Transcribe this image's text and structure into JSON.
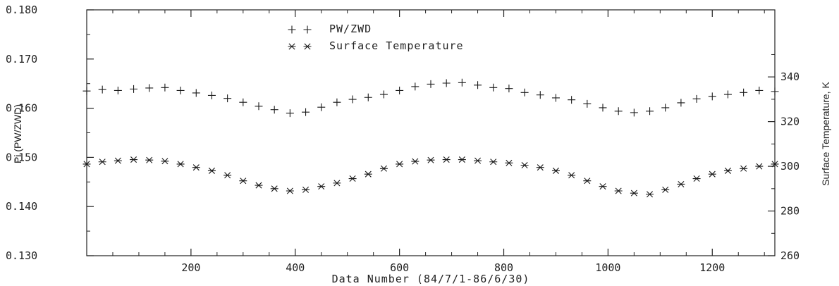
{
  "chart_data": {
    "type": "scatter",
    "title": "",
    "xlabel": "Data Number (84/7/1-86/6/30)",
    "ylabel_left": "Pi (PW/ZWD)",
    "ylabel_right": "Surface Temperature, K",
    "xlim": [
      0,
      1320
    ],
    "ylim_left": [
      0.13,
      0.18
    ],
    "ylim_right": [
      260,
      370
    ],
    "x_ticks": [
      "200",
      "400",
      "600",
      "800",
      "1000",
      "1200"
    ],
    "y_ticks_left": [
      "0.130",
      "0.140",
      "0.150",
      "0.160",
      "0.170",
      "0.180"
    ],
    "y_ticks_right": [
      "260",
      "280",
      "300",
      "320",
      "340"
    ],
    "legend_position": "top-center",
    "grid": false,
    "series": [
      {
        "name": "PW/ZWD",
        "axis": "left",
        "marker": "plus",
        "x": [
          0,
          30,
          60,
          90,
          120,
          150,
          180,
          210,
          240,
          270,
          300,
          330,
          360,
          390,
          420,
          450,
          480,
          510,
          540,
          570,
          600,
          630,
          660,
          690,
          720,
          750,
          780,
          810,
          840,
          870,
          900,
          930,
          960,
          990,
          1020,
          1050,
          1080,
          1110,
          1140,
          1170,
          1200,
          1230,
          1260,
          1290,
          1320
        ],
        "y": [
          0.1635,
          0.1638,
          0.1636,
          0.1639,
          0.1641,
          0.1642,
          0.1636,
          0.1631,
          0.1626,
          0.162,
          0.1612,
          0.1604,
          0.1597,
          0.159,
          0.1592,
          0.1602,
          0.1612,
          0.1618,
          0.1622,
          0.1628,
          0.1636,
          0.1644,
          0.1649,
          0.1651,
          0.1652,
          0.1647,
          0.1642,
          0.164,
          0.1632,
          0.1627,
          0.1621,
          0.1617,
          0.1609,
          0.1601,
          0.1594,
          0.1591,
          0.1594,
          0.1601,
          0.1611,
          0.1619,
          0.1624,
          0.1628,
          0.1632,
          0.1636,
          0.1634
        ]
      },
      {
        "name": "Surface Temperature",
        "axis": "right",
        "marker": "asterisk",
        "x": [
          0,
          30,
          60,
          90,
          120,
          150,
          180,
          210,
          240,
          270,
          300,
          330,
          360,
          390,
          420,
          450,
          480,
          510,
          540,
          570,
          600,
          630,
          660,
          690,
          720,
          750,
          780,
          810,
          840,
          870,
          900,
          930,
          960,
          990,
          1020,
          1050,
          1080,
          1110,
          1140,
          1170,
          1200,
          1230,
          1260,
          1290,
          1320
        ],
        "y": [
          301,
          302,
          302.5,
          303,
          302.8,
          302.3,
          301,
          299.5,
          298,
          296,
          293.5,
          291.5,
          290,
          289,
          289.5,
          291,
          292.5,
          294.5,
          296.5,
          299,
          301,
          302.2,
          302.8,
          303,
          303,
          302.5,
          302,
          301.5,
          300.5,
          299.5,
          298,
          296,
          293.5,
          291,
          289,
          288,
          287.5,
          289.5,
          292,
          294.5,
          296.5,
          298,
          299,
          300,
          301
        ]
      }
    ]
  }
}
